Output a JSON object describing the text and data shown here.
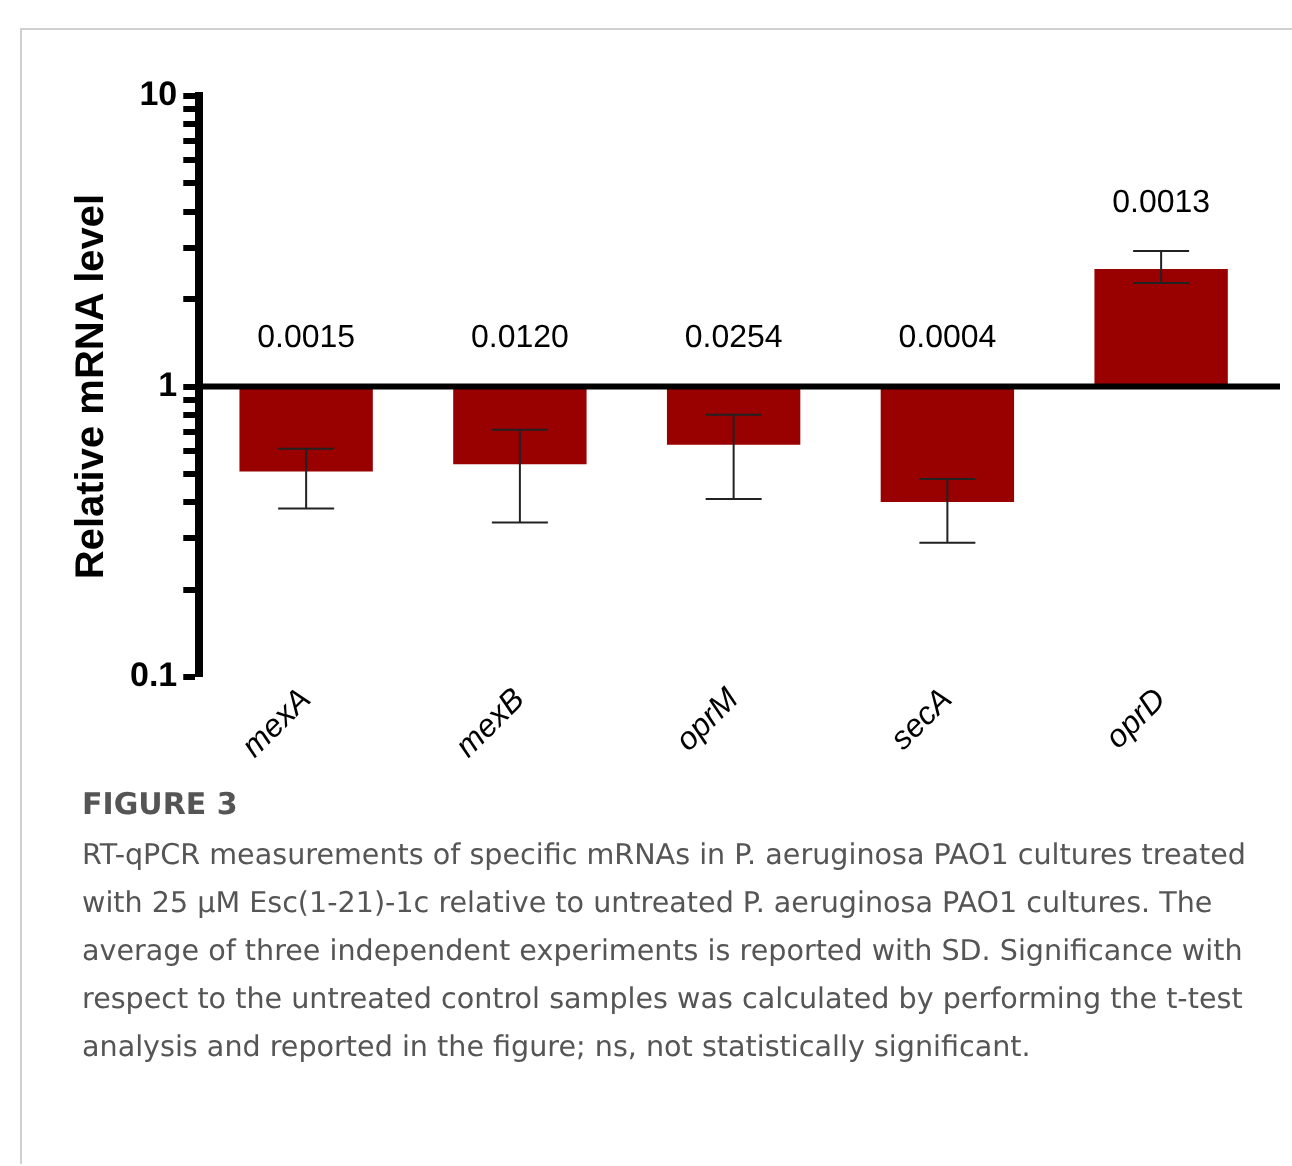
{
  "chart_data": {
    "type": "bar",
    "title": "FIGURE 3",
    "ylabel": "Relative mRNA level",
    "categories": [
      "mexA",
      "mexB",
      "oprM",
      "secA",
      "oprD"
    ],
    "base": [
      1,
      1,
      1,
      1,
      1
    ],
    "values": [
      -0.49,
      -0.46,
      -0.37,
      -0.6,
      1.54
    ],
    "errors": [
      [
        0.38,
        0.61
      ],
      [
        0.34,
        0.71
      ],
      [
        0.41,
        0.8
      ],
      [
        0.29,
        0.48
      ],
      [
        2.27,
        2.93
      ]
    ],
    "color": "#990000",
    "log": "y",
    "ylim": [
      0.1,
      10
    ],
    "yticks": [
      0.1,
      {
        "value": 0.2,
        "label": null
      },
      {
        "value": 0.3,
        "label": null
      },
      {
        "value": 0.4,
        "label": null
      },
      {
        "value": 0.5,
        "label": null
      },
      {
        "value": 0.6,
        "label": null
      },
      {
        "value": 0.7,
        "label": null
      },
      {
        "value": 0.8,
        "label": null
      },
      {
        "value": 0.9,
        "label": null
      },
      1,
      {
        "value": 2,
        "label": null
      },
      {
        "value": 3,
        "label": null
      },
      {
        "value": 4,
        "label": null
      },
      {
        "value": 5,
        "label": null
      },
      {
        "value": 6,
        "label": null
      },
      {
        "value": 7,
        "label": null
      },
      {
        "value": 8,
        "label": null
      },
      {
        "value": 9,
        "label": null
      },
      10
    ],
    "ref_lines": [
      {
        "axis": "y",
        "value": 1,
        "color": "#000000"
      }
    ],
    "grid": false,
    "legend": false,
    "annotations": [
      "0.0015",
      "0.0120",
      "0.0254",
      "0.0004",
      "0.0013",
      "RT-qPCR measurements of specific mRNAs in P. aeruginosa PAO1 cultures treated with 25 μM Esc(1-21)-1c relative to untreated P. aeruginosa PAO1 cultures. The average of three independent experiments is reported with SD. Significance with respect to the untreated control samples was calculated by performing the t-test analysis and reported in the figure; ns, not statistically significant."
    ]
  }
}
